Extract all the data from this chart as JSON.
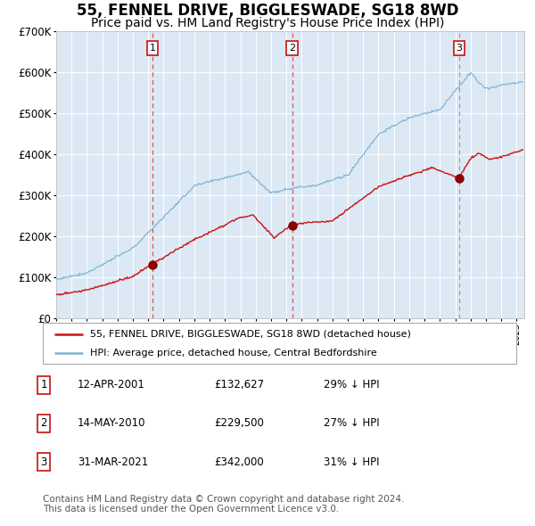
{
  "title": "55, FENNEL DRIVE, BIGGLESWADE, SG18 8WD",
  "subtitle": "Price paid vs. HM Land Registry's House Price Index (HPI)",
  "title_fontsize": 12,
  "subtitle_fontsize": 10,
  "background_color": "#ffffff",
  "plot_bg_color": "#dce9f5",
  "grid_color": "#ffffff",
  "hpi_line_color": "#7ab3d4",
  "price_line_color": "#cc1111",
  "sale_marker_color": "#8b0000",
  "vline_color_red": "#dd4444",
  "vline_color_gray": "#999999",
  "ylim": [
    0,
    700000
  ],
  "yticks": [
    0,
    100000,
    200000,
    300000,
    400000,
    500000,
    600000,
    700000
  ],
  "ytick_labels": [
    "£0",
    "£100K",
    "£200K",
    "£300K",
    "£400K",
    "£500K",
    "£600K",
    "£700K"
  ],
  "xmin": 1995.0,
  "xmax": 2025.5,
  "sales": [
    {
      "date_num": 2001.28,
      "price": 132627,
      "label": "1",
      "vline_color": "#dd4444"
    },
    {
      "date_num": 2010.37,
      "price": 229500,
      "label": "2",
      "vline_color": "#dd4444"
    },
    {
      "date_num": 2021.25,
      "price": 342000,
      "label": "3",
      "vline_color": "#999999"
    }
  ],
  "legend_entries": [
    {
      "label": "55, FENNEL DRIVE, BIGGLESWADE, SG18 8WD (detached house)",
      "color": "#cc1111"
    },
    {
      "label": "HPI: Average price, detached house, Central Bedfordshire",
      "color": "#7ab3d4"
    }
  ],
  "table_rows": [
    {
      "num": "1",
      "date": "12-APR-2001",
      "price": "£132,627",
      "note": "29% ↓ HPI"
    },
    {
      "num": "2",
      "date": "14-MAY-2010",
      "price": "£229,500",
      "note": "27% ↓ HPI"
    },
    {
      "num": "3",
      "date": "31-MAR-2021",
      "price": "£342,000",
      "note": "31% ↓ HPI"
    }
  ],
  "footnote": "Contains HM Land Registry data © Crown copyright and database right 2024.\nThis data is licensed under the Open Government Licence v3.0.",
  "footnote_fontsize": 7.5
}
